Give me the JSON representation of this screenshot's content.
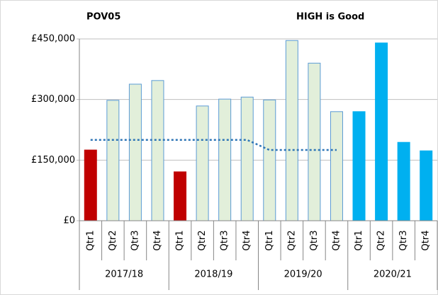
{
  "chart_data": {
    "type": "bar",
    "title": "POV05",
    "annotation": "HIGH is Good",
    "categories": [
      "Qtr1",
      "Qtr2",
      "Qtr3",
      "Qtr4",
      "Qtr1",
      "Qtr2",
      "Qtr3",
      "Qtr4",
      "Qtr1",
      "Qtr2",
      "Qtr3",
      "Qtr4",
      "Qtr1",
      "Qtr2",
      "Qtr3",
      "Qtr4"
    ],
    "groups": [
      "2017/18",
      "2018/19",
      "2019/20",
      "2020/21"
    ],
    "values": [
      175000,
      298000,
      338000,
      347000,
      121000,
      284000,
      301000,
      306000,
      299000,
      446000,
      390000,
      270000,
      270000,
      440000,
      194000,
      173000
    ],
    "colors": [
      "#c00000",
      "#e2efda",
      "#e2efda",
      "#e2efda",
      "#c00000",
      "#e2efda",
      "#e2efda",
      "#e2efda",
      "#e2efda",
      "#e2efda",
      "#e2efda",
      "#e2efda",
      "#00b0f0",
      "#00b0f0",
      "#00b0f0",
      "#00b0f0"
    ],
    "bar_border": "#5b9bd5",
    "target": [
      200000,
      200000,
      200000,
      200000,
      200000,
      200000,
      200000,
      200000,
      175000,
      175000,
      175000,
      175000,
      null,
      null,
      null,
      null
    ],
    "target_color": "#2e75b6",
    "ylim": [
      0,
      450000
    ],
    "yticks": [
      {
        "value": 0,
        "label": "£0"
      },
      {
        "value": 150000,
        "label": "£150,000"
      },
      {
        "value": 300000,
        "label": "£300,000"
      },
      {
        "value": 450000,
        "label": "£450,000"
      }
    ],
    "grid": true
  }
}
